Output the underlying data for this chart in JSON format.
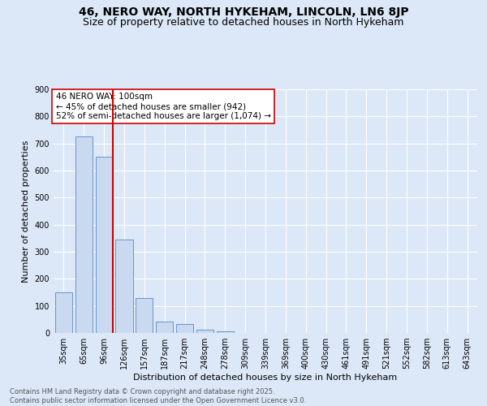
{
  "title": "46, NERO WAY, NORTH HYKEHAM, LINCOLN, LN6 8JP",
  "subtitle": "Size of property relative to detached houses in North Hykeham",
  "xlabel": "Distribution of detached houses by size in North Hykeham",
  "ylabel": "Number of detached properties",
  "categories": [
    "35sqm",
    "65sqm",
    "96sqm",
    "126sqm",
    "157sqm",
    "187sqm",
    "217sqm",
    "248sqm",
    "278sqm",
    "309sqm",
    "339sqm",
    "369sqm",
    "400sqm",
    "430sqm",
    "461sqm",
    "491sqm",
    "521sqm",
    "552sqm",
    "582sqm",
    "613sqm",
    "643sqm"
  ],
  "values": [
    150,
    725,
    650,
    345,
    130,
    42,
    32,
    13,
    6,
    0,
    0,
    0,
    0,
    0,
    0,
    0,
    0,
    0,
    0,
    0,
    0
  ],
  "bar_color": "#c9d9f0",
  "bar_edge_color": "#5a87c5",
  "vline_index": 2,
  "vline_color": "#cc0000",
  "annotation_text": "46 NERO WAY: 100sqm\n← 45% of detached houses are smaller (942)\n52% of semi-detached houses are larger (1,074) →",
  "annotation_box_facecolor": "#ffffff",
  "annotation_box_edgecolor": "#cc0000",
  "ylim": [
    0,
    900
  ],
  "yticks": [
    0,
    100,
    200,
    300,
    400,
    500,
    600,
    700,
    800,
    900
  ],
  "background_color": "#dce8f8",
  "grid_color": "#ffffff",
  "footer_text": "Contains HM Land Registry data © Crown copyright and database right 2025.\nContains public sector information licensed under the Open Government Licence v3.0.",
  "title_fontsize": 10,
  "subtitle_fontsize": 9,
  "ylabel_fontsize": 8,
  "xlabel_fontsize": 8,
  "tick_fontsize": 7,
  "annotation_fontsize": 7.5,
  "footer_fontsize": 6
}
